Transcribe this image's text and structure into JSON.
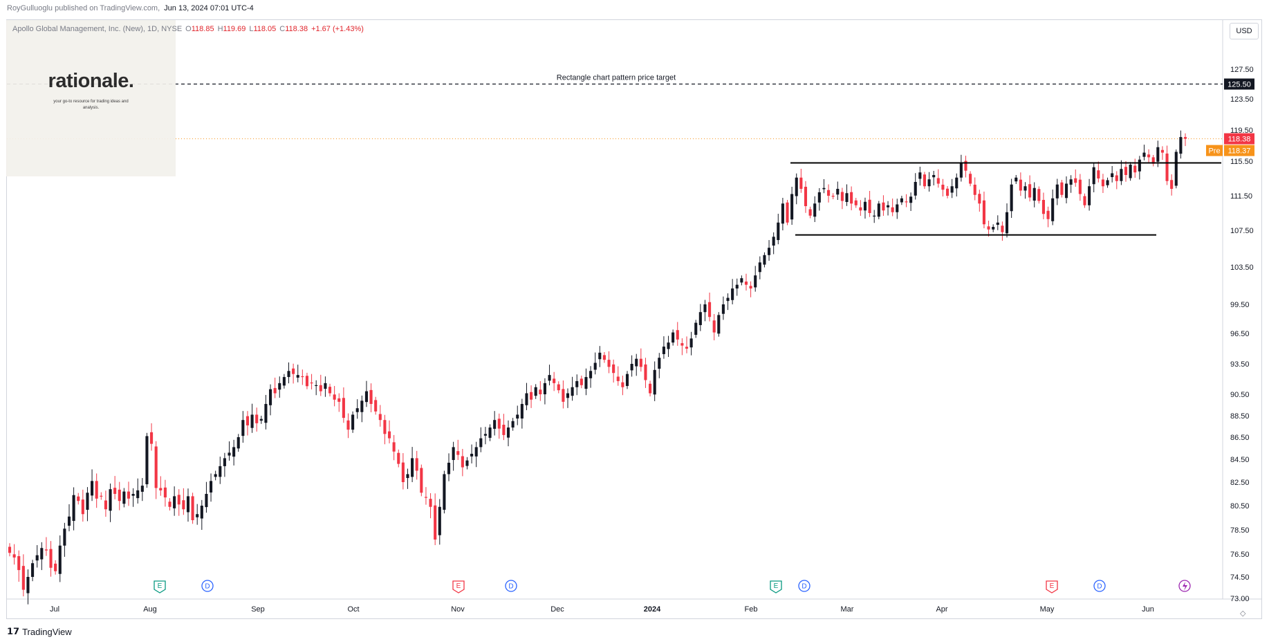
{
  "header": {
    "author": "RoyGulluoglu published on TradingView.com,",
    "date": "Jun 13, 2024 07:01 UTC-4"
  },
  "legend": {
    "title": "Apollo Global Management, Inc. (New), 1D, NYSE",
    "o_label": "O",
    "o_value": "118.85",
    "h_label": "H",
    "h_value": "119.69",
    "l_label": "L",
    "l_value": "118.05",
    "c_label": "C",
    "c_value": "118.38",
    "change": "+1.67 (+1.43%)"
  },
  "logo": {
    "name": "rationale.",
    "tagline": "your go-to resource for trading ideas and analysis."
  },
  "currency": "USD",
  "footer": {
    "brand": "TradingView"
  },
  "colors": {
    "up": "#131722",
    "down": "#f23645",
    "target_line": "#131722",
    "last_price": "#f23645",
    "pre": "#f7931a",
    "axis_bg": "#ffffff"
  },
  "chart_data": {
    "type": "candlestick",
    "title": "",
    "xlabel": "",
    "ylabel": "",
    "ylim": [
      73.0,
      131.5
    ],
    "y_ticks": [
      "127.50",
      "123.50",
      "119.50",
      "115.50",
      "111.50",
      "107.50",
      "103.50",
      "99.50",
      "96.50",
      "93.50",
      "90.50",
      "88.50",
      "86.50",
      "84.50",
      "82.50",
      "80.50",
      "78.50",
      "76.50",
      "74.50",
      "73.00"
    ],
    "x_labels": [
      "Jul",
      "Aug",
      "Sep",
      "Oct",
      "Nov",
      "Dec",
      "2024",
      "Feb",
      "Mar",
      "Apr",
      "May",
      "Jun"
    ],
    "price_target": {
      "label": "Rectangle chart pattern price target",
      "value": 125.5,
      "value_label": "125.50"
    },
    "rectangle_pattern": {
      "top": 115.3,
      "bottom": 107.0,
      "start_date": "2024-02-12",
      "end_date": "2024-06-10"
    },
    "last_price": {
      "value": 118.38,
      "label": "118.38"
    },
    "premarket": {
      "tag": "Pre",
      "value": 118.37,
      "label": "118.37"
    },
    "events": [
      {
        "type": "E",
        "date": "2023-08-03"
      },
      {
        "type": "D",
        "date": "2023-08-17"
      },
      {
        "type": "E",
        "date": "2023-11-01"
      },
      {
        "type": "D",
        "date": "2023-11-16"
      },
      {
        "type": "E",
        "date": "2024-02-09"
      },
      {
        "type": "D",
        "date": "2024-02-16"
      },
      {
        "type": "E",
        "date": "2024-05-02"
      },
      {
        "type": "D",
        "date": "2024-05-17"
      },
      {
        "type": "S",
        "date": "2024-06-10"
      }
    ],
    "month_starts": {
      "Jul": "2023-07-03",
      "Aug": "2023-08-01",
      "Sep": "2023-09-01",
      "Oct": "2023-10-02",
      "Nov": "2023-11-01",
      "Dec": "2023-12-01",
      "2024": "2024-01-02",
      "Feb": "2024-02-01",
      "Mar": "2024-03-01",
      "Apr": "2024-04-01",
      "May": "2024-05-01",
      "Jun": "2024-06-03"
    },
    "closes": [
      76.6,
      76.2,
      75.1,
      73.6,
      74.5,
      75.7,
      76.4,
      77.0,
      76.8,
      75.3,
      75.0,
      77.2,
      78.6,
      79.6,
      81.4,
      80.9,
      79.8,
      81.6,
      82.6,
      81.1,
      81.3,
      80.2,
      81.9,
      81.5,
      80.9,
      81.7,
      81.1,
      81.5,
      81.8,
      82.2,
      86.6,
      85.9,
      82.0,
      81.8,
      81.2,
      80.4,
      81.3,
      80.6,
      80.2,
      81.3,
      79.3,
      79.8,
      80.5,
      81.5,
      82.6,
      83.2,
      83.9,
      84.6,
      85.1,
      85.6,
      86.5,
      88.1,
      87.6,
      88.6,
      87.8,
      88.2,
      89.6,
      91.0,
      90.6,
      91.6,
      92.2,
      92.8,
      92.5,
      92.4,
      92.2,
      91.3,
      91.6,
      91.4,
      90.8,
      91.6,
      90.6,
      90.0,
      89.8,
      88.3,
      87.2,
      88.6,
      89.2,
      89.9,
      90.8,
      89.6,
      88.9,
      88.1,
      86.8,
      86.4,
      85.2,
      84.1,
      82.5,
      83.2,
      84.6,
      83.5,
      81.6,
      81.2,
      80.4,
      77.7,
      80.4,
      83.2,
      84.2,
      85.6,
      84.9,
      83.8,
      84.4,
      85.0,
      85.6,
      86.4,
      86.8,
      87.4,
      88.1,
      87.3,
      86.7,
      87.4,
      88.0,
      88.6,
      89.6,
      90.6,
      90.0,
      91.2,
      90.5,
      91.6,
      92.4,
      91.6,
      90.9,
      89.8,
      90.6,
      91.2,
      91.8,
      91.4,
      92.2,
      92.8,
      93.6,
      94.6,
      93.9,
      93.2,
      92.6,
      91.8,
      91.2,
      92.5,
      93.5,
      94.0,
      93.2,
      91.9,
      90.6,
      92.9,
      94.1,
      95.2,
      95.6,
      96.6,
      95.9,
      95.3,
      95.0,
      96.0,
      97.6,
      98.7,
      99.5,
      98.2,
      96.6,
      98.4,
      99.5,
      100.2,
      101.2,
      101.6,
      102.3,
      101.6,
      101.2,
      102.6,
      104.0,
      104.8,
      105.6,
      106.8,
      108.4,
      110.6,
      108.4,
      111.7,
      113.6,
      112.3,
      110.3,
      109.2,
      110.6,
      111.9,
      112.4,
      111.5,
      111.4,
      112.3,
      110.9,
      111.8,
      110.6,
      110.4,
      109.8,
      110.8,
      109.5,
      109.2,
      110.6,
      109.8,
      110.4,
      109.6,
      110.5,
      111.2,
      110.8,
      111.4,
      113.1,
      114.2,
      112.6,
      113.4,
      113.9,
      112.9,
      112.2,
      111.5,
      112.6,
      113.6,
      115.3,
      114.4,
      112.9,
      111.6,
      110.6,
      108.2,
      107.6,
      107.9,
      108.4,
      107.3,
      109.6,
      112.8,
      113.6,
      112.1,
      112.6,
      111.3,
      112.4,
      110.9,
      109.4,
      108.8,
      111.2,
      112.8,
      111.6,
      112.9,
      113.4,
      113.0,
      111.7,
      110.4,
      112.6,
      114.8,
      113.5,
      112.6,
      113.3,
      114.1,
      113.2,
      114.6,
      113.9,
      115.1,
      114.2,
      115.7,
      116.6,
      116.0,
      115.2,
      117.3,
      116.6,
      113.2,
      112.3,
      116.7,
      118.6,
      118.38
    ]
  }
}
